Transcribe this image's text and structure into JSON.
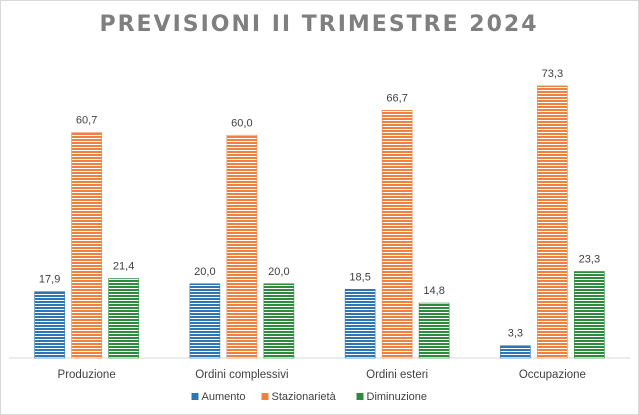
{
  "chart_data": {
    "type": "bar",
    "title": "PREVISIONI II TRIMESTRE 2024",
    "categories": [
      "Produzione",
      "Ordini complessivi",
      "Ordini esteri",
      "Occupazione"
    ],
    "series": [
      {
        "name": "Aumento",
        "color": "#2e75b6",
        "values": [
          17.9,
          20.0,
          18.5,
          3.3
        ],
        "labels": [
          "17,9",
          "20,0",
          "18,5",
          "3,3"
        ]
      },
      {
        "name": "Stazionarietà",
        "color": "#f08040",
        "values": [
          60.7,
          60.0,
          66.7,
          73.3
        ],
        "labels": [
          "60,7",
          "60,0",
          "66,7",
          "73,3"
        ]
      },
      {
        "name": "Diminuzione",
        "color": "#2e8b3e",
        "values": [
          21.4,
          20.0,
          14.8,
          23.3
        ],
        "labels": [
          "21,4",
          "20,0",
          "14,8",
          "23,3"
        ]
      }
    ],
    "ylim": [
      0,
      80
    ],
    "grid": false,
    "legend_position": "bottom"
  }
}
